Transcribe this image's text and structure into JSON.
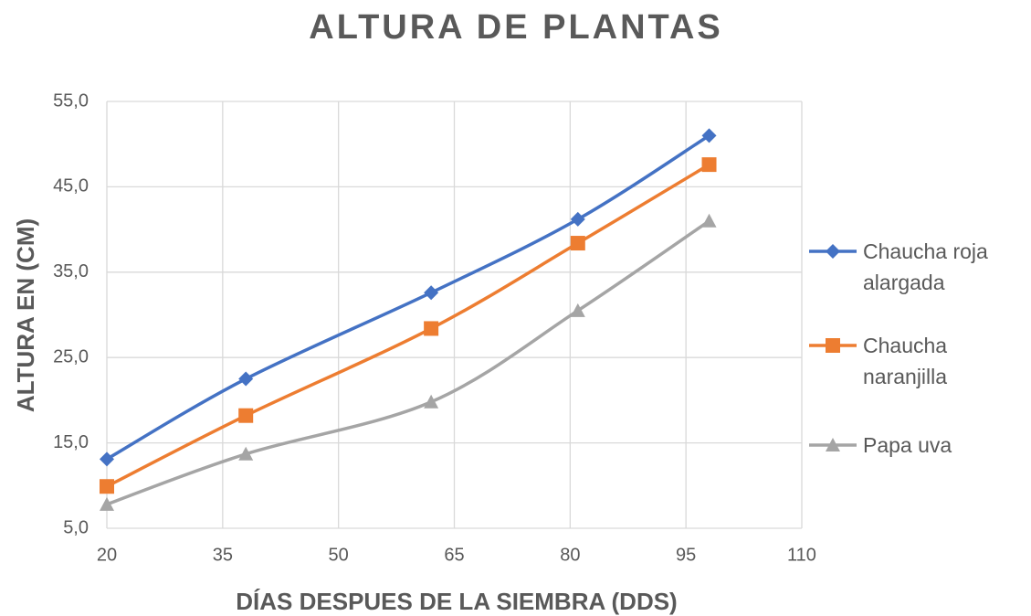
{
  "chart_data": {
    "type": "line",
    "title": "ALTURA DE PLANTAS",
    "x_label": "DÍAS DESPUES DE LA SIEMBRA (DDS)",
    "y_label": "ALTURA EN (CM)",
    "x": [
      20,
      38,
      62,
      81,
      98
    ],
    "series": [
      {
        "name": "Chaucha roja alargada",
        "color": "#4472c4",
        "marker": "diamond",
        "values": [
          13.1,
          22.5,
          32.6,
          41.2,
          51.0
        ]
      },
      {
        "name": "Chaucha naranjilla",
        "color": "#ed7d31",
        "marker": "square",
        "values": [
          9.9,
          18.2,
          28.4,
          38.4,
          47.6
        ]
      },
      {
        "name": "Papa uva",
        "color": "#a5a5a5",
        "marker": "triangle",
        "values": [
          7.8,
          13.7,
          19.8,
          30.5,
          41.0
        ]
      }
    ],
    "xlim": [
      20,
      110
    ],
    "xticks": [
      20,
      35,
      50,
      65,
      80,
      95,
      110
    ],
    "ylim": [
      5,
      55
    ],
    "yticks": [
      {
        "value": 5,
        "label": "5,0"
      },
      {
        "value": 15,
        "label": "15,0"
      },
      {
        "value": 25,
        "label": "25,0"
      },
      {
        "value": 35,
        "label": "35,0"
      },
      {
        "value": 45,
        "label": "45,0"
      },
      {
        "value": 55,
        "label": "55,0"
      }
    ],
    "grid": true,
    "legend": "right"
  }
}
